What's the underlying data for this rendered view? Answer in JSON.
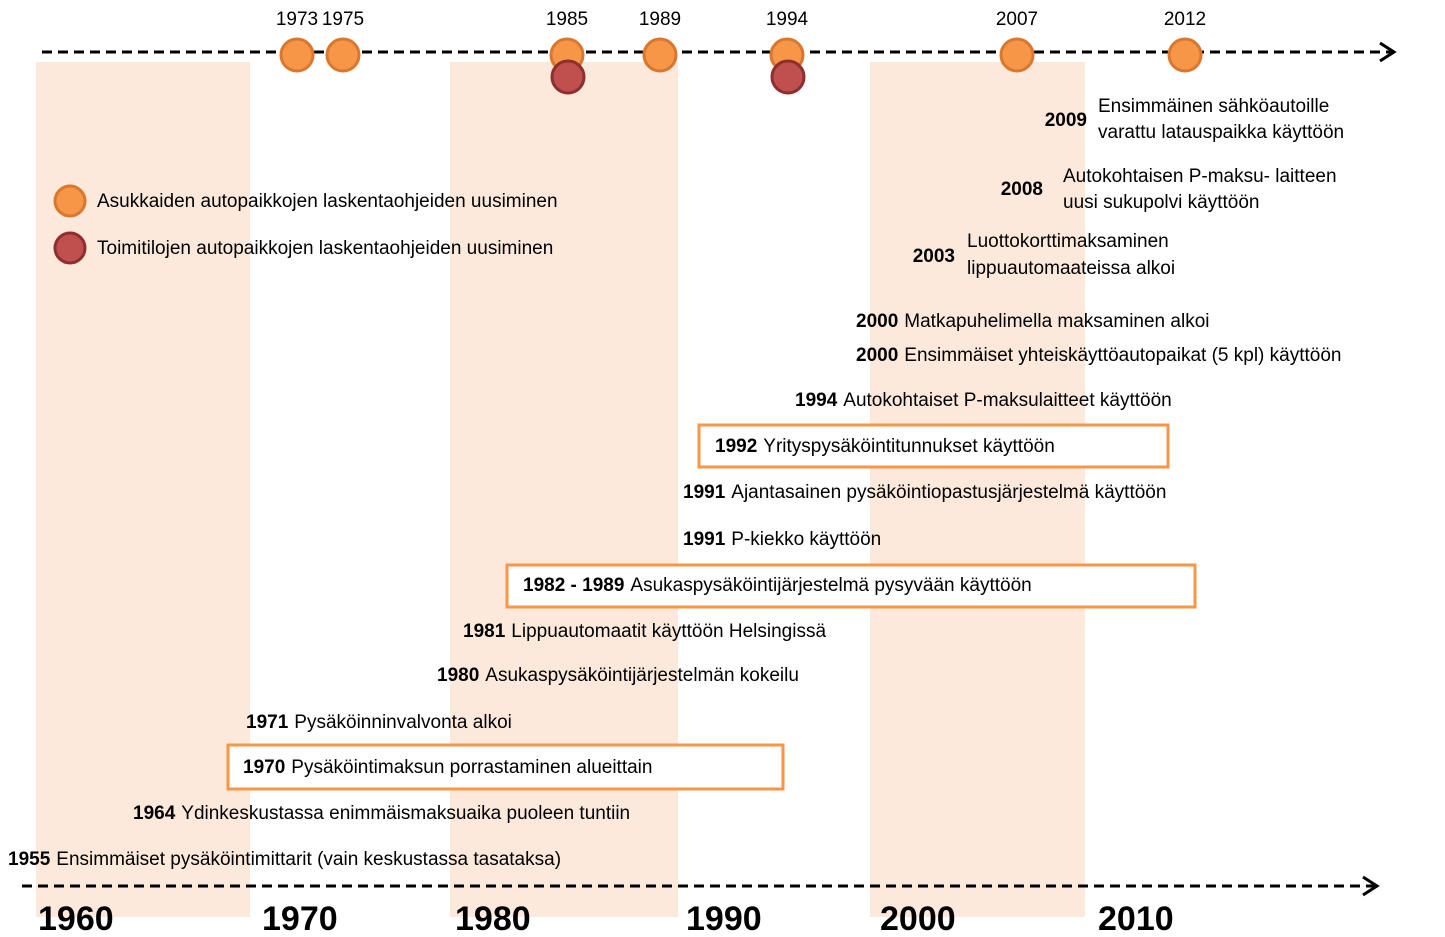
{
  "legend": [
    {
      "label": "Asukkaiden autopaikkojen laskentaohjeiden uusiminen",
      "color": "#f79646",
      "stroke": "#d9772e"
    },
    {
      "label": "Toimitilojen autopaikkojen laskentaohjeiden uusiminen",
      "color": "#c0504d",
      "stroke": "#8c2f2d"
    }
  ],
  "markers": [
    {
      "year": 1973,
      "kinds": [
        0
      ]
    },
    {
      "year": 1975,
      "kinds": [
        0
      ]
    },
    {
      "year": 1985,
      "kinds": [
        0,
        1
      ]
    },
    {
      "year": 1989,
      "kinds": [
        0
      ]
    },
    {
      "year": 1994,
      "kinds": [
        0,
        1
      ]
    },
    {
      "year": 2007,
      "kinds": [
        0
      ]
    },
    {
      "year": 2012,
      "kinds": [
        0
      ]
    }
  ],
  "events": [
    {
      "year": 2009,
      "lines": [
        "Ensimmäinen sähköautoille",
        "varattu latauspaikka käyttöön"
      ]
    },
    {
      "year": 2008,
      "lines": [
        "Autokohtaisen P-maksu- laitteen",
        "uusi sukupolvi käyttöön"
      ]
    },
    {
      "year": 2003,
      "lines": [
        "Luottokorttimaksaminen",
        "lippuautomaateissa alkoi"
      ]
    },
    {
      "year": 2000,
      "lines": [
        "Matkapuhelimella maksaminen alkoi"
      ]
    },
    {
      "year": 2000,
      "lines": [
        "Ensimmäiset yhteiskäyttöautopaikat (5 kpl) käyttöön"
      ]
    },
    {
      "year": 1994,
      "lines": [
        "Autokohtaiset P-maksulaitteet käyttöön"
      ]
    },
    {
      "year": 1992,
      "lines": [
        "Yrityspysäköintitunnukset käyttöön"
      ],
      "boxed": true
    },
    {
      "year": 1991,
      "lines": [
        "Ajantasainen pysäköintiopastusjärjestelmä käyttöön"
      ]
    },
    {
      "year": 1991,
      "lines": [
        "P-kiekko käyttöön"
      ]
    },
    {
      "year": "1982 - 1989",
      "lines": [
        "Asukaspysäköintijärjestelmä pysyvään käyttöön"
      ],
      "boxed": true
    },
    {
      "year": 1981,
      "lines": [
        "Lippuautomaatit käyttöön Helsingissä"
      ]
    },
    {
      "year": 1980,
      "lines": [
        "Asukaspysäköintijärjestelmän kokeilu"
      ]
    },
    {
      "year": 1971,
      "lines": [
        "Pysäköinninvalvonta alkoi"
      ]
    },
    {
      "year": 1970,
      "lines": [
        "Pysäköintimaksun porrastaminen alueittain"
      ],
      "boxed": true
    },
    {
      "year": 1964,
      "lines": [
        "Ydinkeskustassa enimmäismaksuaika puoleen tuntiin"
      ]
    },
    {
      "year": 1955,
      "lines": [
        "Ensimmäiset pysäköintimittarit  (vain keskustassa tasataksa)"
      ]
    }
  ],
  "decades": [
    1960,
    1970,
    1980,
    1990,
    2000,
    2010
  ]
}
